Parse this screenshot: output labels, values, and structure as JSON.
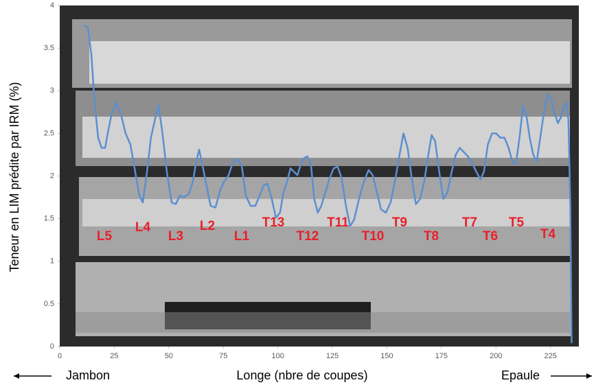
{
  "chart_data": {
    "type": "line",
    "x_label": "Longe (nbre de coupes)",
    "y_label": "Teneur en LIM prédite par IRM (%)",
    "left_direction": "Jambon",
    "right_direction": "Epaule",
    "xlim": [
      0,
      238
    ],
    "ylim": [
      0,
      4
    ],
    "xticks": [
      0,
      25,
      50,
      75,
      100,
      125,
      150,
      175,
      200,
      225
    ],
    "yticks": [
      0,
      0.5,
      1,
      1.5,
      2,
      2.5,
      3,
      3.5,
      4
    ],
    "annotations": [
      "L5",
      "L4",
      "L3",
      "L2",
      "L1",
      "T13",
      "T12",
      "T11",
      "T10",
      "T9",
      "T8",
      "T7",
      "T6",
      "T5",
      "T4"
    ],
    "series": [
      {
        "color": "#5b8fd0",
        "x": [
          11,
          12.9,
          14.5,
          16,
          17.6,
          19.2,
          20.8,
          22.3,
          23.9,
          26.1,
          28.3,
          30.2,
          32.4,
          34.6,
          36.5,
          38.1,
          40,
          41.8,
          44,
          45.3,
          46.9,
          49.1,
          51.3,
          53.2,
          55.1,
          56.9,
          59.2,
          61,
          62.6,
          63.9,
          65.4,
          67.3,
          69.2,
          71.4,
          73.3,
          75.2,
          77.4,
          79,
          81.2,
          83.4,
          85.3,
          87.5,
          89.7,
          91.6,
          93.5,
          95.3,
          97.2,
          99.1,
          101,
          102.6,
          104.2,
          105.8,
          107.4,
          109,
          110.4,
          112,
          113.6,
          115.2,
          116.7,
          118.3,
          119.9,
          121.8,
          123.7,
          125.6,
          127.4,
          129.3,
          131.2,
          133.1,
          135,
          137.2,
          139.4,
          141.6,
          143.5,
          145.4,
          147.3,
          149.5,
          151.7,
          153.9,
          155.8,
          157.6,
          159.5,
          161.4,
          163.3,
          165.2,
          167.1,
          169,
          170.5,
          172.1,
          174,
          175.9,
          177.8,
          179.7,
          181.6,
          183.4,
          185.3,
          187.2,
          189.1,
          191,
          192.9,
          194.5,
          196.3,
          198.2,
          200.1,
          202,
          203.9,
          205.8,
          207.7,
          209.2,
          210.8,
          212.4,
          214,
          215.5,
          217.1,
          218.7,
          220.3,
          221.5,
          222.8,
          224,
          225.3,
          226.9,
          228.4,
          230,
          231.3,
          232.2,
          233.2,
          234.1,
          234.7
        ],
        "values": [
          3.77,
          3.74,
          3.42,
          2.86,
          2.45,
          2.33,
          2.33,
          2.54,
          2.74,
          2.86,
          2.7,
          2.5,
          2.37,
          2.05,
          1.77,
          1.69,
          2.05,
          2.45,
          2.7,
          2.83,
          2.54,
          2.05,
          1.69,
          1.67,
          1.77,
          1.75,
          1.79,
          1.93,
          2.17,
          2.31,
          2.13,
          1.89,
          1.65,
          1.63,
          1.81,
          1.93,
          2.01,
          2.13,
          2.2,
          2.13,
          1.77,
          1.65,
          1.65,
          1.77,
          1.89,
          1.91,
          1.73,
          1.51,
          1.57,
          1.81,
          1.93,
          2.09,
          2.05,
          2.01,
          2.13,
          2.21,
          2.23,
          2.13,
          1.73,
          1.57,
          1.65,
          1.81,
          1.97,
          2.09,
          2.11,
          1.97,
          1.65,
          1.41,
          1.49,
          1.73,
          1.93,
          2.07,
          2.01,
          1.81,
          1.61,
          1.57,
          1.69,
          1.97,
          2.25,
          2.5,
          2.33,
          1.97,
          1.67,
          1.73,
          1.93,
          2.25,
          2.48,
          2.41,
          2.05,
          1.73,
          1.81,
          2.05,
          2.25,
          2.33,
          2.28,
          2.23,
          2.15,
          2.05,
          1.96,
          2.05,
          2.37,
          2.5,
          2.5,
          2.45,
          2.45,
          2.33,
          2.15,
          2.15,
          2.45,
          2.82,
          2.7,
          2.45,
          2.25,
          2.17,
          2.45,
          2.66,
          2.86,
          2.96,
          2.9,
          2.74,
          2.62,
          2.7,
          2.82,
          2.86,
          2.66,
          1.65,
          0.04
        ]
      }
    ]
  }
}
